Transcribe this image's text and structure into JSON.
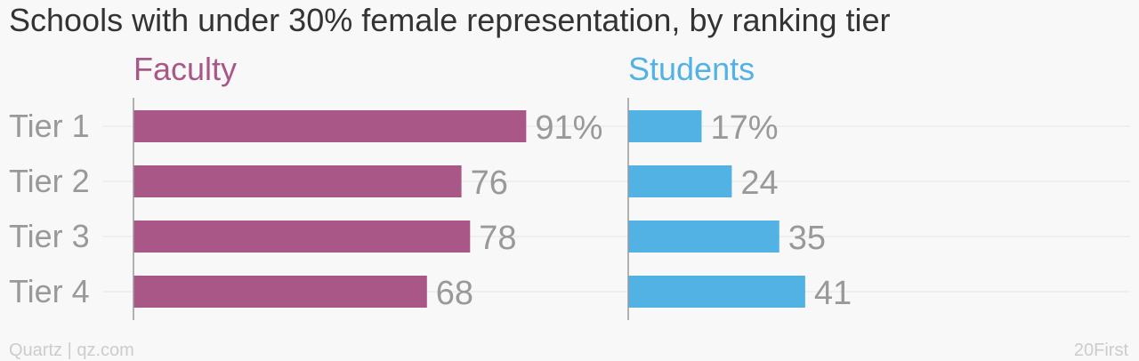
{
  "chart_data": {
    "type": "bar",
    "orientation": "horizontal",
    "title": "Schools with under 30% female representation, by ranking tier",
    "categories": [
      "Tier 1",
      "Tier 2",
      "Tier 3",
      "Tier 4"
    ],
    "series": [
      {
        "name": "Faculty",
        "color": "#a85786",
        "values": [
          91,
          76,
          78,
          68
        ],
        "value_labels": [
          "91%",
          "76",
          "78",
          "68"
        ]
      },
      {
        "name": "Students",
        "color": "#52b2e4",
        "values": [
          17,
          24,
          35,
          41
        ],
        "value_labels": [
          "17%",
          "24",
          "35",
          "41"
        ]
      }
    ],
    "xlim": [
      0,
      100
    ],
    "grid": true,
    "layout": "small-multiples-side-by-side"
  },
  "footer": {
    "source": "Quartz | qz.com",
    "credit": "20First"
  },
  "colors": {
    "background": "#f8f8f8",
    "title": "#333333",
    "label": "#999999",
    "gridline": "#e6e6e6",
    "axis": "#999999",
    "footer": "#cccccc"
  }
}
